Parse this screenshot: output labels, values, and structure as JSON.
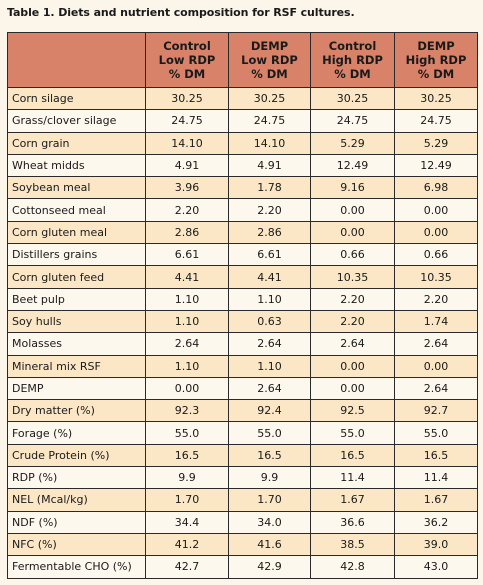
{
  "caption": "Table 1. Diets and nutrient composition for RSF cultures.",
  "columns": [
    {
      "line1": "Control",
      "line2": "Low RDP",
      "line3": "% DM"
    },
    {
      "line1": "DEMP",
      "line2": "Low RDP",
      "line3": "% DM"
    },
    {
      "line1": "Control",
      "line2": "High RDP",
      "line3": "% DM"
    },
    {
      "line1": "DEMP",
      "line2": "High RDP",
      "line3": "% DM"
    }
  ],
  "rows": [
    {
      "label": "Corn silage",
      "values": [
        "30.25",
        "30.25",
        "30.25",
        "30.25"
      ]
    },
    {
      "label": "Grass/clover silage",
      "values": [
        "24.75",
        "24.75",
        "24.75",
        "24.75"
      ]
    },
    {
      "label": "Corn grain",
      "values": [
        "14.10",
        "14.10",
        "5.29",
        "5.29"
      ]
    },
    {
      "label": "Wheat midds",
      "values": [
        "4.91",
        "4.91",
        "12.49",
        "12.49"
      ]
    },
    {
      "label": "Soybean meal",
      "values": [
        "3.96",
        "1.78",
        "9.16",
        "6.98"
      ]
    },
    {
      "label": "Cottonseed meal",
      "values": [
        "2.20",
        "2.20",
        "0.00",
        "0.00"
      ]
    },
    {
      "label": "Corn gluten meal",
      "values": [
        "2.86",
        "2.86",
        "0.00",
        "0.00"
      ]
    },
    {
      "label": "Distillers grains",
      "values": [
        "6.61",
        "6.61",
        "0.66",
        "0.66"
      ]
    },
    {
      "label": "Corn gluten feed",
      "values": [
        "4.41",
        "4.41",
        "10.35",
        "10.35"
      ]
    },
    {
      "label": "Beet pulp",
      "values": [
        "1.10",
        "1.10",
        "2.20",
        "2.20"
      ]
    },
    {
      "label": "Soy hulls",
      "values": [
        "1.10",
        "0.63",
        "2.20",
        "1.74"
      ]
    },
    {
      "label": "Molasses",
      "values": [
        "2.64",
        "2.64",
        "2.64",
        "2.64"
      ]
    },
    {
      "label": "Mineral mix RSF",
      "values": [
        "1.10",
        "1.10",
        "0.00",
        "0.00"
      ]
    },
    {
      "label": "DEMP",
      "values": [
        "0.00",
        "2.64",
        "0.00",
        "2.64"
      ]
    },
    {
      "label": "Dry matter (%)",
      "values": [
        "92.3",
        "92.4",
        "92.5",
        "92.7"
      ]
    },
    {
      "label": "Forage (%)",
      "values": [
        "55.0",
        "55.0",
        "55.0",
        "55.0"
      ]
    },
    {
      "label": "Crude Protein (%)",
      "values": [
        "16.5",
        "16.5",
        "16.5",
        "16.5"
      ]
    },
    {
      "label": "RDP (%)",
      "values": [
        "9.9",
        "9.9",
        "11.4",
        "11.4"
      ]
    },
    {
      "label": "NEL (Mcal/kg)",
      "values": [
        "1.70",
        "1.70",
        "1.67",
        "1.67"
      ]
    },
    {
      "label": "NDF (%)",
      "values": [
        "34.4",
        "34.0",
        "36.6",
        "36.2"
      ]
    },
    {
      "label": "NFC (%)",
      "values": [
        "41.2",
        "41.6",
        "38.5",
        "39.0"
      ]
    },
    {
      "label": "Fermentable CHO (%)",
      "values": [
        "42.7",
        "42.9",
        "42.8",
        "43.0"
      ]
    }
  ]
}
